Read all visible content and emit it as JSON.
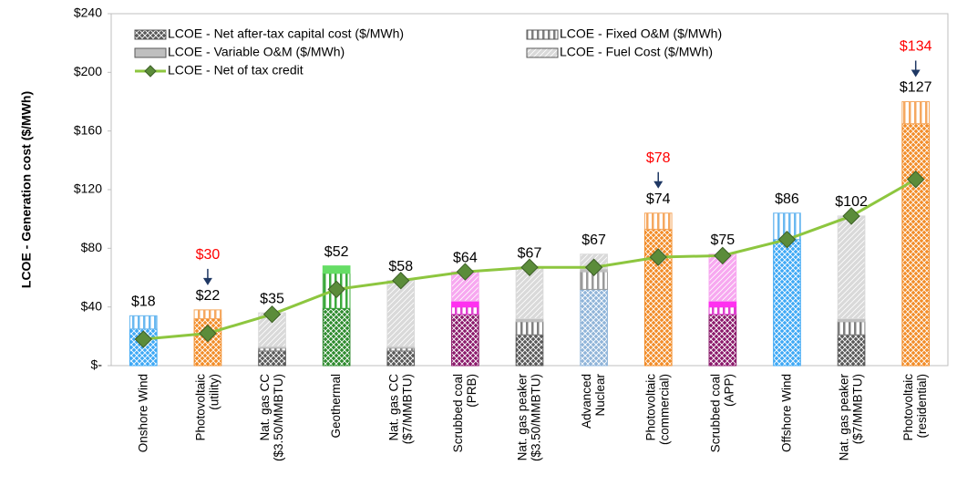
{
  "chart_data": {
    "type": "stacked_bar_line",
    "ylabel": "LCOE - Generation cost ($/MWh)",
    "categories": [
      "Onshore Wind",
      "Photovoltaic\n(utility)",
      "Nat. gas CC\n($3.50/MMBTU)",
      "Geothermal",
      "Nat. gas CC\n($7/MMBTU)",
      "Scrubbed coal\n(PRB)",
      "Nat. gas peaker\n($3.50/MMBTU)",
      "Advanced\nNuclear",
      "Photovoltaic\n(commercial)",
      "Scrubbed coal\n(APP)",
      "Offshore Wind",
      "Nat. gas peaker\n($7/MMBTU)",
      "Photovoltaic\n(residential)"
    ],
    "ylim": [
      0,
      240
    ],
    "yticks": [
      {
        "value": 0,
        "label": "$-"
      },
      {
        "value": 40,
        "label": "$40"
      },
      {
        "value": 80,
        "label": "$80"
      },
      {
        "value": 120,
        "label": "$120"
      },
      {
        "value": 160,
        "label": "$160"
      },
      {
        "value": 200,
        "label": "$200"
      },
      {
        "value": 240,
        "label": "$240"
      }
    ],
    "series": [
      {
        "name": "LCOE - Net after-tax capital cost ($/MWh)",
        "pattern": "cross",
        "color": "#595959",
        "colors": [
          "#3fa9f5",
          "#f28c28",
          "#595959",
          "#2e8b2e",
          "#595959",
          "#8b1a6b",
          "#595959",
          "#8fb4d9",
          "#f28c28",
          "#8b1a6b",
          "#3fa9f5",
          "#595959",
          "#f28c28"
        ],
        "values": [
          25,
          32,
          10,
          39,
          10,
          35,
          21,
          52,
          93,
          35,
          86,
          21,
          165
        ]
      },
      {
        "name": "LCOE - Fixed O&M ($/MWh)",
        "pattern": "vertical",
        "color": "#7f7f7f",
        "colors": [
          "#6ab8f0",
          "#f5a860",
          "#7f7f7f",
          "#3caa3c",
          "#7f7f7f",
          "#e040d0",
          "#7f7f7f",
          "#9a9a9a",
          "#f5a860",
          "#e040d0",
          "#6ab8f0",
          "#7f7f7f",
          "#f5a860"
        ],
        "values": [
          9,
          6,
          2,
          24,
          2,
          5,
          9,
          12,
          11,
          5,
          18,
          9,
          15
        ]
      },
      {
        "name": "LCOE - Variable O&M ($/MWh)",
        "pattern": "solid",
        "color": "#bfbfbf",
        "colors": [
          "#bfbfbf",
          "#bfbfbf",
          "#bfbfbf",
          "#66dd66",
          "#bfbfbf",
          "#ff30f0",
          "#bfbfbf",
          "#bfbfbf",
          "#bfbfbf",
          "#ff30f0",
          "#bfbfbf",
          "#bfbfbf",
          "#bfbfbf"
        ],
        "values": [
          0,
          0,
          1,
          5,
          1,
          4,
          2,
          2,
          0,
          4,
          0,
          2,
          0
        ]
      },
      {
        "name": "LCOE - Fuel Cost ($/MWh)",
        "pattern": "diag",
        "color": "#d9d9d9",
        "colors": [
          "#d9d9d9",
          "#d9d9d9",
          "#d9d9d9",
          "#d9d9d9",
          "#d9d9d9",
          "#f7a8f0",
          "#d9d9d9",
          "#d9d9d9",
          "#d9d9d9",
          "#f7a8f0",
          "#d9d9d9",
          "#d9d9d9",
          "#d9d9d9"
        ],
        "values": [
          0,
          0,
          23,
          0,
          45,
          20,
          35,
          10,
          0,
          32,
          0,
          70,
          0
        ]
      }
    ],
    "line": {
      "name": "LCOE - Net of tax credit",
      "color": "#8dc63f",
      "marker_color": "#5b8c3a",
      "values": [
        18,
        22,
        35,
        52,
        58,
        64,
        67,
        67,
        74,
        75,
        86,
        102,
        127
      ],
      "value_labels": [
        "$18",
        "$22",
        "$35",
        "$52",
        "$58",
        "$64",
        "$67",
        "$67",
        "$74",
        "$75",
        "$86",
        "$102",
        "$127"
      ]
    },
    "annotations": {
      "color": "#ff0000",
      "values": [
        null,
        30,
        null,
        null,
        null,
        null,
        null,
        null,
        78,
        null,
        null,
        null,
        134
      ],
      "value_labels": [
        null,
        "$30",
        null,
        null,
        null,
        null,
        null,
        null,
        "$78",
        null,
        null,
        null,
        "$134"
      ]
    }
  }
}
